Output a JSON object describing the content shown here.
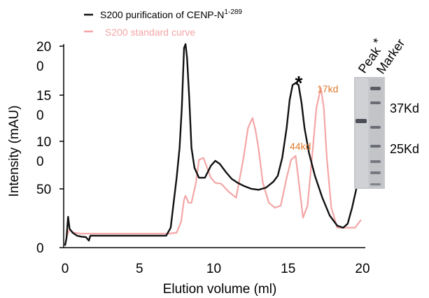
{
  "chart_data": {
    "type": "line",
    "title": "",
    "xlabel": "Elution volume (ml)",
    "ylabel": "Intensity (mAU)",
    "xlim": [
      0,
      20
    ],
    "xticks": [
      "0",
      "5",
      "10",
      "15",
      "20"
    ],
    "yticks": [
      "0",
      "50",
      "10\n0",
      "15\n0",
      "20\n0"
    ],
    "grid": false,
    "legend_position": "top-left",
    "legend": {
      "black_main": "S200 purification of CENP-N",
      "black_sup": "1-289",
      "pink": "S200 standard curve"
    },
    "colors": {
      "black": "#111111",
      "pink": "#f4a6a6",
      "annotation": "#e07a2e"
    },
    "series": [
      {
        "name": "S200 purification of CENP-N1-289",
        "color": "#111111",
        "x": [
          0.0,
          0.1,
          0.2,
          0.3,
          0.5,
          0.8,
          1.1,
          1.4,
          1.6,
          1.7,
          2.5,
          4.0,
          5.5,
          6.8,
          7.1,
          7.3,
          7.5,
          7.7,
          7.85,
          8.0,
          8.1,
          8.2,
          8.35,
          8.5,
          8.7,
          9.0,
          9.4,
          9.8,
          10.1,
          10.4,
          10.8,
          11.2,
          11.6,
          12.0,
          12.5,
          13.0,
          13.5,
          14.0,
          14.3,
          14.6,
          14.9,
          15.1,
          15.3,
          15.5,
          15.7,
          15.9,
          16.1,
          16.4,
          16.8,
          17.3,
          17.8,
          18.3,
          18.7,
          19.0,
          19.3,
          19.6,
          19.9
        ],
        "y": [
          2,
          10,
          31,
          19,
          15,
          12,
          11,
          10.5,
          7,
          12,
          12,
          12,
          12,
          12,
          20,
          45,
          70,
          100,
          140,
          200,
          204,
          190,
          150,
          100,
          80,
          70,
          70,
          82,
          87,
          84,
          76,
          69,
          65,
          62,
          59,
          58,
          60,
          66,
          72,
          90,
          120,
          148,
          163,
          165,
          163,
          145,
          120,
          95,
          72,
          50,
          32,
          22,
          20,
          24,
          40,
          60,
          80
        ]
      },
      {
        "name": "S200 standard curve",
        "color": "#f4a6a6",
        "x": [
          0.0,
          0.15,
          0.3,
          0.6,
          1.0,
          1.5,
          2.0,
          4.0,
          7.0,
          7.5,
          7.8,
          8.0,
          8.1,
          8.3,
          8.5,
          8.8,
          9.0,
          9.3,
          9.5,
          9.8,
          10.1,
          10.5,
          11.0,
          11.5,
          12.0,
          12.3,
          12.6,
          12.8,
          13.0,
          13.3,
          13.7,
          14.1,
          14.5,
          14.9,
          15.2,
          15.5,
          15.8,
          16.0,
          16.3,
          16.6,
          16.9,
          17.2,
          17.4,
          17.6,
          17.9,
          18.3,
          18.7,
          19.1,
          19.5,
          19.9
        ],
        "y": [
          3,
          13,
          18,
          15,
          14,
          14,
          14,
          14,
          14,
          15,
          26,
          48,
          52,
          45,
          45,
          65,
          88,
          90,
          82,
          70,
          65,
          64,
          56,
          50,
          90,
          120,
          130,
          118,
          100,
          65,
          45,
          40,
          42,
          70,
          88,
          92,
          55,
          30,
          42,
          90,
          140,
          160,
          140,
          90,
          40,
          20,
          20,
          20,
          20,
          28
        ]
      }
    ],
    "annotations": {
      "asterisk": "*",
      "mw_17": "17kd",
      "mw_44": "44kd"
    },
    "gel_inset": {
      "lane_labels": [
        "Peak",
        "Marker"
      ],
      "lane_asterisk": "*",
      "size_labels": [
        "37Kd",
        "25Kd"
      ]
    }
  }
}
